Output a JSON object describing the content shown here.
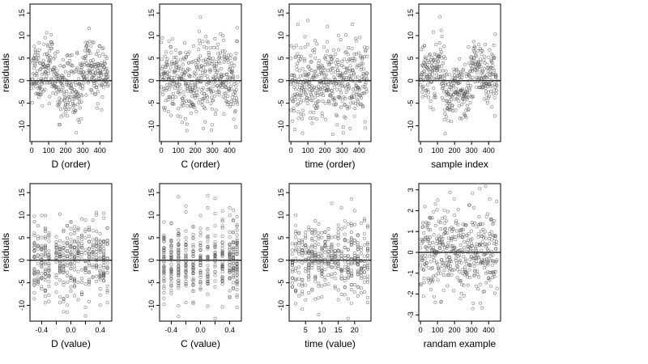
{
  "chart_data": [
    {
      "type": "scatter",
      "xlabel": "D (order)",
      "ylabel": "residuals",
      "xlim": [
        -10,
        470
      ],
      "ylim": [
        -13.5,
        17
      ],
      "xticks": [
        0,
        100,
        200,
        300,
        400
      ],
      "yticks": [
        -10,
        -5,
        0,
        5,
        10,
        15
      ],
      "hline": 0,
      "x_pattern": "index",
      "y_pattern": "smooth",
      "n": 450,
      "seed": 11
    },
    {
      "type": "scatter",
      "xlabel": "C (order)",
      "ylabel": "residuals",
      "xlim": [
        -10,
        470
      ],
      "ylim": [
        -13.5,
        17
      ],
      "xticks": [
        0,
        100,
        200,
        300,
        400
      ],
      "yticks": [
        -10,
        -5,
        0,
        5,
        10,
        15
      ],
      "hline": 0,
      "x_pattern": "index",
      "y_pattern": "noise",
      "n": 450,
      "seed": 23
    },
    {
      "type": "scatter",
      "xlabel": "time (order)",
      "ylabel": "residuals",
      "xlim": [
        -10,
        470
      ],
      "ylim": [
        -13.5,
        17
      ],
      "xticks": [
        0,
        100,
        200,
        300,
        400
      ],
      "yticks": [
        -10,
        -5,
        0,
        5,
        10,
        15
      ],
      "hline": 0,
      "x_pattern": "index",
      "y_pattern": "noise",
      "n": 450,
      "seed": 37
    },
    {
      "type": "scatter",
      "xlabel": "sample index",
      "ylabel": "residuals",
      "xlim": [
        -10,
        470
      ],
      "ylim": [
        -13.5,
        17
      ],
      "xticks": [
        0,
        100,
        200,
        300,
        400
      ],
      "yticks": [
        -10,
        -5,
        0,
        5,
        10,
        15
      ],
      "hline": 0,
      "x_pattern": "index",
      "y_pattern": "smooth",
      "n": 450,
      "seed": 41
    },
    {
      "type": "scatter",
      "xlabel": "D (value)",
      "ylabel": "residuals",
      "xlim": [
        -0.56,
        0.56
      ],
      "ylim": [
        -13.5,
        17
      ],
      "xticks": [
        -0.4,
        -0.2,
        0.0,
        0.2,
        0.4
      ],
      "xticklabels": [
        "-0.4",
        "",
        "0.0",
        "",
        "0.4"
      ],
      "yticks": [
        -10,
        -5,
        0,
        5,
        10,
        15
      ],
      "hline": 0,
      "x_pattern": "discrete",
      "x_levels": [
        -0.5,
        -0.45,
        -0.4,
        -0.35,
        -0.3,
        -0.2,
        -0.15,
        -0.1,
        -0.05,
        0.0,
        0.05,
        0.1,
        0.15,
        0.2,
        0.25,
        0.3,
        0.35,
        0.4,
        0.45,
        0.5
      ],
      "y_pattern": "noise",
      "n": 450,
      "seed": 53
    },
    {
      "type": "scatter",
      "xlabel": "C (value)",
      "ylabel": "residuals",
      "xlim": [
        -0.56,
        0.56
      ],
      "ylim": [
        -13.5,
        17
      ],
      "xticks": [
        -0.4,
        -0.2,
        0.0,
        0.2,
        0.4
      ],
      "xticklabels": [
        "-0.4",
        "",
        "0.0",
        "",
        "0.4"
      ],
      "yticks": [
        -10,
        -5,
        0,
        5,
        10,
        15
      ],
      "hline": 0,
      "x_pattern": "discrete",
      "x_levels": [
        -0.5,
        -0.4,
        -0.3,
        -0.2,
        -0.1,
        0.0,
        0.1,
        0.2,
        0.3,
        0.4,
        0.45,
        0.5
      ],
      "y_pattern": "noise",
      "n": 450,
      "seed": 67
    },
    {
      "type": "scatter",
      "xlabel": "time (value)",
      "ylabel": "residuals",
      "xlim": [
        0,
        25
      ],
      "ylim": [
        -13.5,
        17
      ],
      "xticks": [
        5,
        10,
        15,
        20
      ],
      "yticks": [
        -10,
        -5,
        0,
        5,
        10,
        15
      ],
      "hline": 0,
      "x_pattern": "discrete",
      "x_levels": [
        1,
        2,
        3,
        4,
        5,
        6,
        7,
        8,
        9,
        10,
        11,
        12,
        13,
        14,
        15,
        16,
        17,
        18,
        19,
        20,
        21,
        22,
        23,
        24
      ],
      "y_pattern": "noise",
      "n": 450,
      "seed": 79
    },
    {
      "type": "scatter",
      "xlabel": "randam example",
      "ylabel": "residuals",
      "xlim": [
        -10,
        470
      ],
      "ylim": [
        -3.3,
        3.3
      ],
      "xticks": [
        0,
        100,
        200,
        300,
        400
      ],
      "yticks": [
        -3,
        -2,
        -1,
        0,
        1,
        2,
        3
      ],
      "hline": 0,
      "x_pattern": "index",
      "y_pattern": "unit",
      "n": 450,
      "seed": 97
    }
  ]
}
